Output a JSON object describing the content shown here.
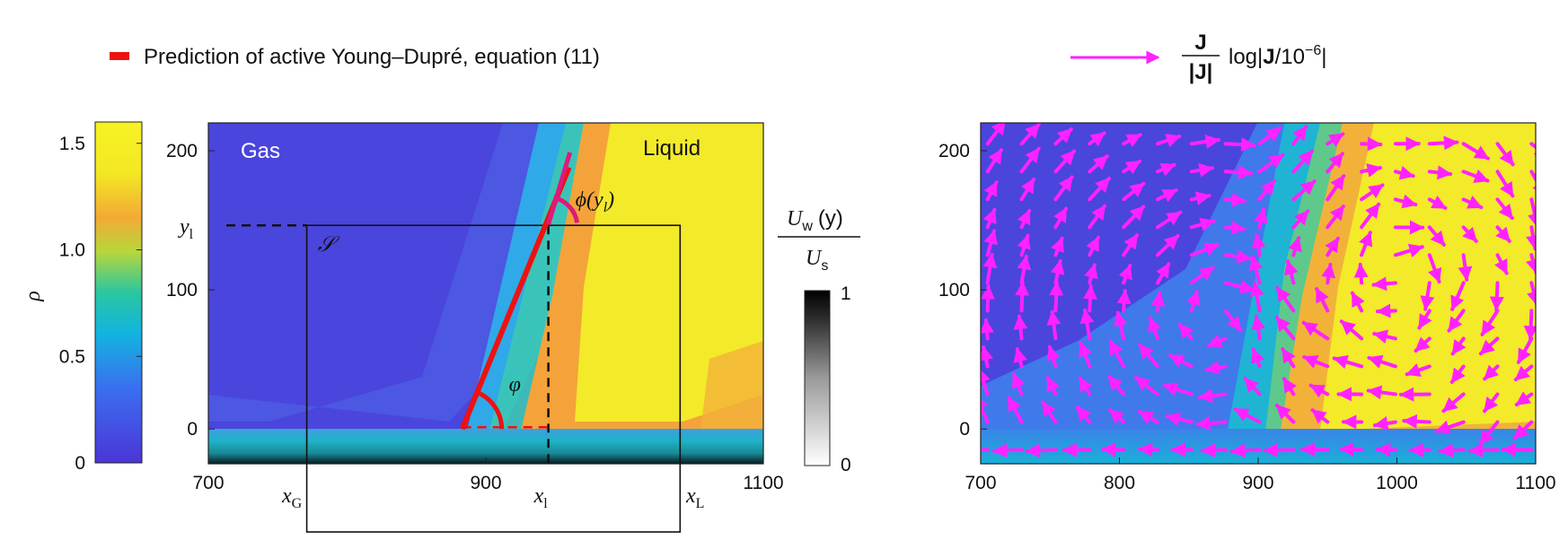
{
  "legend": {
    "left_text": "Prediction of active Young–Dupré, equation (11)",
    "left_color": "#ee1111",
    "right_arrow_color": "#ff22ff",
    "right_frac_num": "J",
    "right_frac_den": "|J|",
    "right_text_a": "log|",
    "right_text_b": "J",
    "right_text_c": "/10",
    "right_text_sup": "−6",
    "right_text_d": "|"
  },
  "chart_data": [
    {
      "type": "heatmap",
      "panel": "left",
      "xlim": [
        700,
        1100
      ],
      "ylim": [
        -25,
        220
      ],
      "x_ticks": [
        "700",
        "900",
        "1100"
      ],
      "y_ticks": [
        "0",
        "100",
        "200"
      ],
      "region_labels": {
        "gas": "Gas",
        "liquid": "Liquid",
        "domain": "𝒮"
      },
      "colorbar": {
        "label": "ρ",
        "ticks": [
          "0",
          "0.5",
          "1.0",
          "1.5"
        ],
        "range": [
          0,
          1.6
        ],
        "stops": [
          "#4b35d6",
          "#3a6ff0",
          "#12b4e0",
          "#2ac7a0",
          "#b8d63a",
          "#f2aa35",
          "#f3e824",
          "#f7f224"
        ]
      },
      "wall_colorbar": {
        "label_num": "U",
        "label_num_sub": "w",
        "label_num_arg": "(y)",
        "label_den": "U",
        "label_den_sub": "s",
        "ticks": [
          "0",
          "1"
        ]
      },
      "annotations": {
        "y_l": "y",
        "y_l_sub": "l",
        "x_G": "x",
        "x_G_sub": "G",
        "x_l": "x",
        "x_l_sub": "l",
        "x_L": "x",
        "x_L_sub": "L",
        "phi_label": "ϕ(y",
        "phi_sub": "l",
        "phi_close": ")",
        "varphi_label": "φ"
      },
      "interface": {
        "x_bottom": 880,
        "x_top": 940,
        "y_bottom": 0,
        "y_top": 200
      },
      "young_dupre_line": {
        "x0": 870,
        "y0": 0,
        "x1": 947,
        "y1": 188
      },
      "box_S": {
        "x_G": 780,
        "x_L": 1040,
        "y_top": 147
      },
      "x_l_value": 958,
      "y_l_value": 147
    },
    {
      "type": "heatmap",
      "panel": "right",
      "xlim": [
        700,
        1100
      ],
      "ylim": [
        -25,
        220
      ],
      "x_ticks": [
        "700",
        "800",
        "900",
        "1000",
        "1100"
      ],
      "y_ticks": [
        "0",
        "100",
        "200"
      ]
    }
  ]
}
